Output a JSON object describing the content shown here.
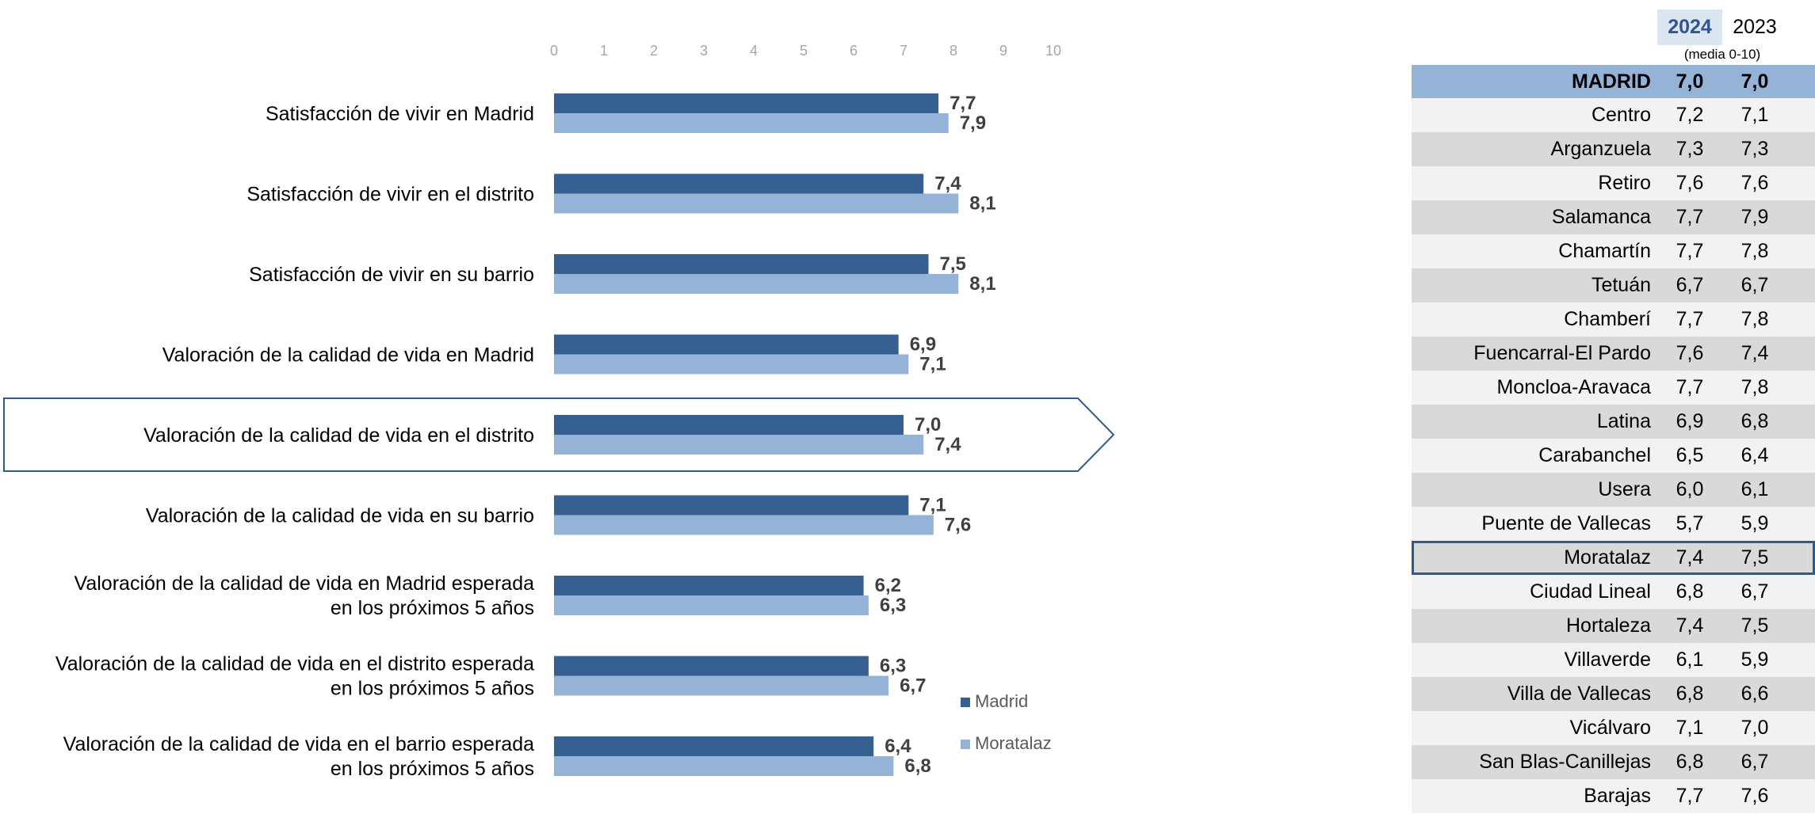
{
  "chart_data": {
    "type": "bar",
    "orientation": "horizontal",
    "xlim": [
      0,
      10
    ],
    "x_ticks": [
      "0",
      "1",
      "2",
      "3",
      "4",
      "5",
      "6",
      "7",
      "8",
      "9",
      "10"
    ],
    "categories": [
      "Satisfacción de vivir en Madrid",
      "Satisfacción de vivir en el distrito",
      "Satisfacción de vivir en su barrio",
      "Valoración de la calidad de vida en Madrid",
      "Valoración de la calidad de vida en el distrito",
      "Valoración de la calidad de vida en su barrio",
      "Valoración de la calidad de vida en Madrid esperada|en los próximos 5 años",
      "Valoración de la calidad de vida en el distrito esperada|en los próximos 5 años",
      "Valoración de la calidad de vida en el barrio esperada|en los próximos 5 años"
    ],
    "highlighted_category_index": 4,
    "series": [
      {
        "name": "Madrid",
        "color": "#36608f",
        "values": [
          7.7,
          7.4,
          7.5,
          6.9,
          7.0,
          7.1,
          6.2,
          6.3,
          6.4
        ],
        "labels": [
          "7,7",
          "7,4",
          "7,5",
          "6,9",
          "7,0",
          "7,1",
          "6,2",
          "6,3",
          "6,4"
        ]
      },
      {
        "name": "Moratalaz",
        "color": "#95b3d7",
        "values": [
          7.9,
          8.1,
          8.1,
          7.1,
          7.4,
          7.6,
          6.3,
          6.7,
          6.8
        ],
        "labels": [
          "7,9",
          "8,1",
          "8,1",
          "7,1",
          "7,4",
          "7,6",
          "6,3",
          "6,7",
          "6,8"
        ]
      }
    ],
    "legend_position": "bottom-right"
  },
  "table": {
    "headers": {
      "y2024": "2024",
      "y2023": "2023",
      "subtitle": "(media 0-10)"
    },
    "highlight_row": "Moratalaz",
    "rows": [
      {
        "name": "MADRID",
        "v2024": "7,0",
        "v2023": "7,0"
      },
      {
        "name": "Centro",
        "v2024": "7,2",
        "v2023": "7,1"
      },
      {
        "name": "Arganzuela",
        "v2024": "7,3",
        "v2023": "7,3"
      },
      {
        "name": "Retiro",
        "v2024": "7,6",
        "v2023": "7,6"
      },
      {
        "name": "Salamanca",
        "v2024": "7,7",
        "v2023": "7,9"
      },
      {
        "name": "Chamartín",
        "v2024": "7,7",
        "v2023": "7,8"
      },
      {
        "name": "Tetuán",
        "v2024": "6,7",
        "v2023": "6,7"
      },
      {
        "name": "Chamberí",
        "v2024": "7,7",
        "v2023": "7,8"
      },
      {
        "name": "Fuencarral-El Pardo",
        "v2024": "7,6",
        "v2023": "7,4"
      },
      {
        "name": "Moncloa-Aravaca",
        "v2024": "7,7",
        "v2023": "7,8"
      },
      {
        "name": "Latina",
        "v2024": "6,9",
        "v2023": "6,8"
      },
      {
        "name": "Carabanchel",
        "v2024": "6,5",
        "v2023": "6,4"
      },
      {
        "name": "Usera",
        "v2024": "6,0",
        "v2023": "6,1"
      },
      {
        "name": "Puente de Vallecas",
        "v2024": "5,7",
        "v2023": "5,9"
      },
      {
        "name": "Moratalaz",
        "v2024": "7,4",
        "v2023": "7,5"
      },
      {
        "name": "Ciudad Lineal",
        "v2024": "6,8",
        "v2023": "6,7"
      },
      {
        "name": "Hortaleza",
        "v2024": "7,4",
        "v2023": "7,5"
      },
      {
        "name": "Villaverde",
        "v2024": "6,1",
        "v2023": "5,9"
      },
      {
        "name": "Villa de Vallecas",
        "v2024": "6,8",
        "v2023": "6,6"
      },
      {
        "name": "Vicálvaro",
        "v2024": "7,1",
        "v2023": "7,0"
      },
      {
        "name": "San Blas-Canillejas",
        "v2024": "6,8",
        "v2023": "6,7"
      },
      {
        "name": "Barajas",
        "v2024": "7,7",
        "v2023": "7,6"
      }
    ]
  }
}
